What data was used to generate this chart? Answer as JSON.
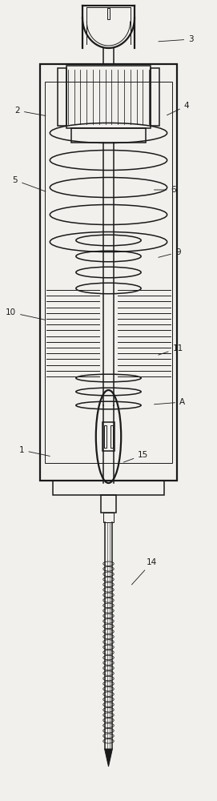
{
  "bg_color": "#f2f0ed",
  "line_color": "#1a1a1a",
  "lw_thin": 0.7,
  "lw_med": 1.1,
  "lw_thick": 1.6,
  "fig_width": 2.71,
  "fig_height": 10.0,
  "label_fs": 7.5,
  "label_positions": {
    "3": [
      0.88,
      0.951,
      0.72,
      0.948
    ],
    "2": [
      0.08,
      0.862,
      0.22,
      0.855
    ],
    "4": [
      0.86,
      0.868,
      0.76,
      0.855
    ],
    "5": [
      0.07,
      0.775,
      0.22,
      0.76
    ],
    "6": [
      0.8,
      0.763,
      0.7,
      0.763
    ],
    "9": [
      0.82,
      0.685,
      0.72,
      0.678
    ],
    "10": [
      0.05,
      0.61,
      0.22,
      0.6
    ],
    "11": [
      0.82,
      0.565,
      0.72,
      0.556
    ],
    "A": [
      0.84,
      0.498,
      0.7,
      0.495
    ],
    "1": [
      0.1,
      0.438,
      0.24,
      0.43
    ],
    "15": [
      0.66,
      0.432,
      0.56,
      0.422
    ],
    "14": [
      0.7,
      0.298,
      0.6,
      0.268
    ]
  }
}
